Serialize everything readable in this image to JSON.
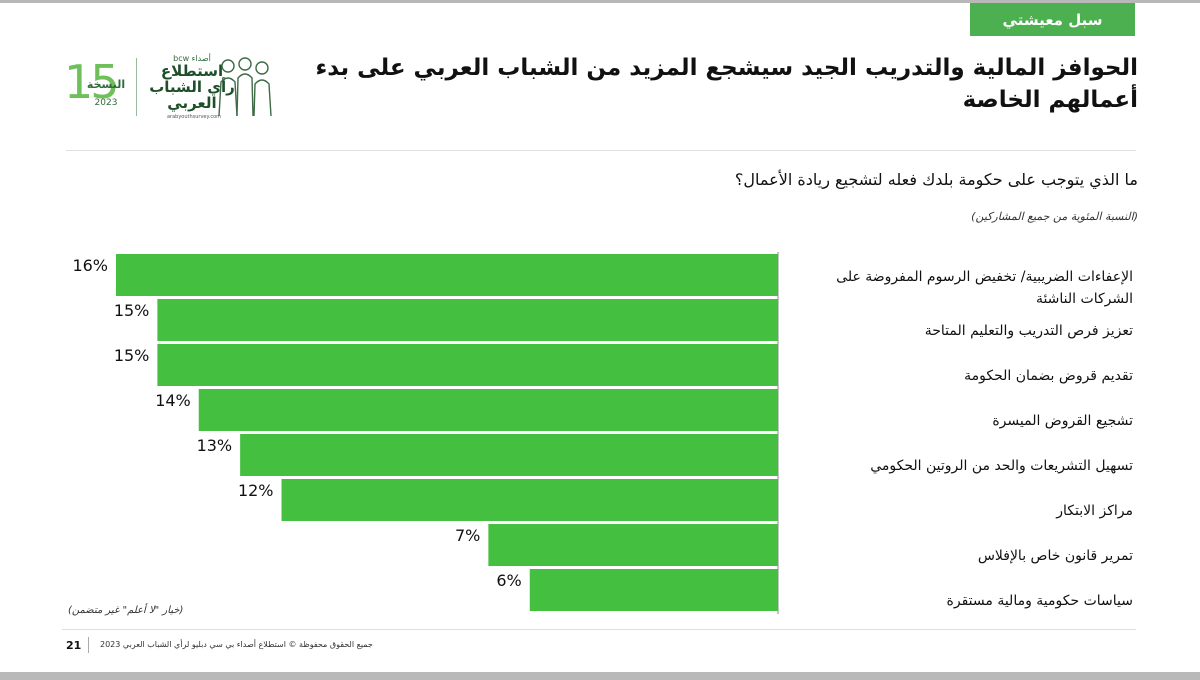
{
  "section_tag": "سبل معيشتي",
  "headline": "الحوافز المالية والتدريب الجيد سيشجع المزيد من الشباب العربي على بدء أعمالهم الخاصة",
  "logo": {
    "edition_number": "15",
    "edition_word": "النسخة",
    "year": "2023",
    "sponsor": "أصداء bcw",
    "title_lines": [
      "استطلاع",
      "رأي الشباب",
      "العربي"
    ],
    "url": "arabyouthsurvey.com"
  },
  "question": "ما الذي يتوجب على حكومة بلدك فعله لتشجيع ريادة الأعمال؟",
  "base_note": "(النسبة المئوية من جميع المشاركين)",
  "dont_know_note": "(خيار \"لا أعلم\" غير متضمن)",
  "footer": {
    "page_number": "21",
    "copyright": "جميع الحقوق محفوظة © استطلاع أصداء بي سي دبليو لرأي الشباب العربي 2023"
  },
  "colors": {
    "bar": "#45bf3f",
    "tag": "#4caf50"
  },
  "chart_data": {
    "type": "bar",
    "orientation": "horizontal",
    "direction": "right-to-left",
    "title": "ما الذي يتوجب على حكومة بلدك فعله لتشجيع ريادة الأعمال؟",
    "xlabel": "",
    "ylabel": "",
    "unit": "%",
    "xlim": [
      0,
      16
    ],
    "grid": false,
    "legend": "none",
    "categories": [
      [
        "الإعفاءات الضريبية/ تخفيض الرسوم المفروضة على",
        "الشركات الناشئة"
      ],
      [
        "تعزيز فرص التدريب والتعليم المتاحة"
      ],
      [
        "تقديم قروض بضمان الحكومة"
      ],
      [
        "تشجيع القروض الميسرة"
      ],
      [
        "تسهيل التشريعات والحد من الروتين الحكومي"
      ],
      [
        "مراكز الابتكار"
      ],
      [
        "تمرير قانون خاص بالإفلاس"
      ],
      [
        "سياسات حكومية ومالية مستقرة"
      ]
    ],
    "values": [
      16,
      15,
      15,
      14,
      13,
      12,
      7,
      6
    ],
    "value_labels": [
      "16%",
      "15%",
      "15%",
      "14%",
      "13%",
      "12%",
      "7%",
      "6%"
    ]
  }
}
